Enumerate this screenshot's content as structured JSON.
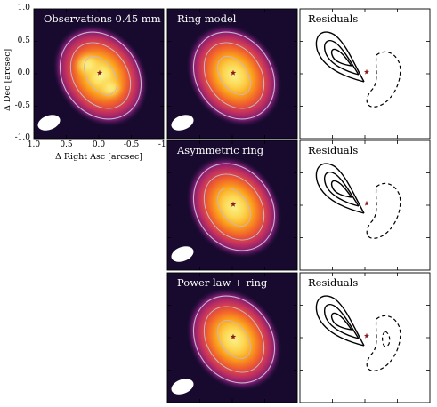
{
  "figure": {
    "panels": [
      {
        "id": "obs",
        "title": "Observations 0.45 mm",
        "kind": "image",
        "secondary_blob": true
      },
      {
        "id": "ring",
        "title": "Ring model",
        "kind": "image"
      },
      {
        "id": "ring_res",
        "title": "Residuals",
        "kind": "residual",
        "variant": "a"
      },
      {
        "id": "asym",
        "title": "Asymmetric ring",
        "kind": "image"
      },
      {
        "id": "asym_res",
        "title": "Residuals",
        "kind": "residual",
        "variant": "b"
      },
      {
        "id": "pl",
        "title": "Power law + ring",
        "kind": "image"
      },
      {
        "id": "pl_res",
        "title": "Residuals",
        "kind": "residual",
        "variant": "c"
      }
    ],
    "colors": {
      "background": "#170a2e",
      "colormap": [
        "#170a2e",
        "#3b0f6f",
        "#7a1c74",
        "#c3305f",
        "#f0602c",
        "#fba31b",
        "#fce360",
        "#f8f6a0"
      ],
      "contour_model": "#c9b6c9",
      "star_marker": "#8b1a1a",
      "beam": "#ffffff",
      "residual_line": "#000000"
    },
    "icons": {
      "star": "star-marker",
      "beam": "beam-ellipse"
    }
  },
  "chart_data": {
    "type": "heatmap",
    "layout": "3x3 grid, first column only top panel",
    "xlabel": "Δ Right Asc [arcsec]",
    "ylabel": "Δ Dec [arcsec]",
    "xlim": [
      1.0,
      -1.0
    ],
    "ylim": [
      -1.0,
      1.0
    ],
    "xticks": [
      1.0,
      0.5,
      0.0,
      -0.5,
      -1.0
    ],
    "xtick_labels": [
      "1.0",
      "0.5",
      "0.0",
      "-0.5",
      "-1"
    ],
    "yticks": [
      1.0,
      0.5,
      0.0,
      -0.5,
      -1.0
    ],
    "ytick_labels": [
      "1.0",
      "0.5",
      "0.0",
      "-0.5",
      "-1.0"
    ],
    "star_position": [
      0.0,
      0.0
    ],
    "panel_titles": [
      "Observations 0.45 mm",
      "Ring model",
      "Residuals",
      "Asymmetric ring",
      "Residuals",
      "Power law + ring",
      "Residuals"
    ],
    "residual_contours": {
      "positive": "solid",
      "negative": "dashed"
    }
  }
}
